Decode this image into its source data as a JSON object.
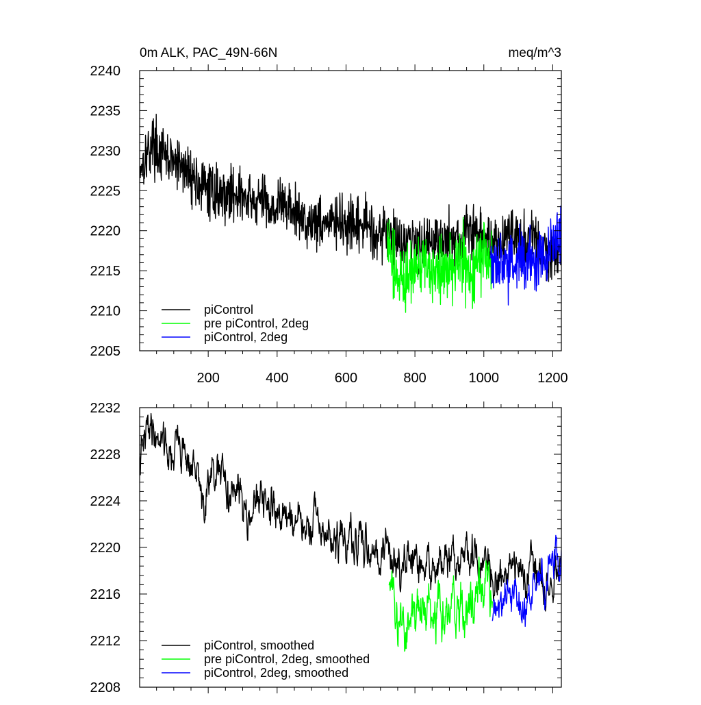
{
  "chart_data": [
    {
      "type": "line",
      "title": "0m ALK, PAC_49N-66N",
      "units_label": "meq/m^3",
      "xlim": [
        1,
        1225
      ],
      "ylim": [
        2205,
        2240
      ],
      "x_tick_values": [
        200,
        400,
        600,
        800,
        1000,
        1200
      ],
      "x_tick_labels": [
        "200",
        "400",
        "600",
        "800",
        "1000",
        "1200"
      ],
      "y_tick_values": [
        2205,
        2210,
        2215,
        2220,
        2225,
        2230,
        2235,
        2240
      ],
      "y_tick_labels": [
        "2205",
        "2210",
        "2215",
        "2220",
        "2225",
        "2230",
        "2235",
        "2240"
      ],
      "grid": false,
      "legend_position": "bottom-left",
      "series": [
        {
          "name": "piControl",
          "color": "#000000",
          "x_start": 1,
          "x_end": 1225,
          "points": [
            [
              1,
              2228
            ],
            [
              20,
              2229.5
            ],
            [
              40,
              2231
            ],
            [
              60,
              2229.5
            ],
            [
              80,
              2229
            ],
            [
              100,
              2228.5
            ],
            [
              120,
              2228
            ],
            [
              140,
              2227.5
            ],
            [
              160,
              2226.5
            ],
            [
              180,
              2225.5
            ],
            [
              200,
              2225
            ],
            [
              220,
              2225
            ],
            [
              240,
              2224.5
            ],
            [
              260,
              2224.5
            ],
            [
              280,
              2225
            ],
            [
              300,
              2224
            ],
            [
              320,
              2223.5
            ],
            [
              340,
              2223.5
            ],
            [
              360,
              2224
            ],
            [
              380,
              2223
            ],
            [
              400,
              2223
            ],
            [
              420,
              2223.5
            ],
            [
              440,
              2222.5
            ],
            [
              460,
              2222
            ],
            [
              480,
              2221.5
            ],
            [
              500,
              2221
            ],
            [
              520,
              2221.5
            ],
            [
              540,
              2221
            ],
            [
              560,
              2221
            ],
            [
              580,
              2221
            ],
            [
              600,
              2220.5
            ],
            [
              620,
              2220
            ],
            [
              640,
              2220.5
            ],
            [
              660,
              2221
            ],
            [
              680,
              2220
            ],
            [
              700,
              2219.5
            ],
            [
              720,
              2220
            ],
            [
              740,
              2219
            ],
            [
              760,
              2218.5
            ],
            [
              780,
              2219
            ],
            [
              800,
              2218.5
            ],
            [
              820,
              2219
            ],
            [
              840,
              2218.5
            ],
            [
              860,
              2219
            ],
            [
              880,
              2218.5
            ],
            [
              900,
              2219
            ],
            [
              920,
              2218.5
            ],
            [
              940,
              2219.5
            ],
            [
              960,
              2220
            ],
            [
              980,
              2219.5
            ],
            [
              1000,
              2219
            ],
            [
              1020,
              2219
            ],
            [
              1040,
              2218.5
            ],
            [
              1060,
              2219
            ],
            [
              1080,
              2220
            ],
            [
              1100,
              2219
            ],
            [
              1120,
              2218.5
            ],
            [
              1140,
              2219
            ],
            [
              1160,
              2218
            ],
            [
              1180,
              2217
            ],
            [
              1200,
              2217.5
            ],
            [
              1225,
              2218
            ]
          ],
          "noise": 2.1
        },
        {
          "name": "pre piControl, 2deg",
          "color": "#00ff00",
          "x_start": 720,
          "x_end": 1025,
          "points": [
            [
              720,
              2219
            ],
            [
              740,
              2215
            ],
            [
              760,
              2214
            ],
            [
              780,
              2214.5
            ],
            [
              800,
              2215
            ],
            [
              820,
              2215
            ],
            [
              840,
              2215
            ],
            [
              860,
              2215.5
            ],
            [
              880,
              2215
            ],
            [
              900,
              2215.5
            ],
            [
              920,
              2216
            ],
            [
              940,
              2216
            ],
            [
              960,
              2215
            ],
            [
              980,
              2216
            ],
            [
              1000,
              2217
            ],
            [
              1025,
              2217.5
            ]
          ],
          "noise": 2.6
        },
        {
          "name": "piControl, 2deg",
          "color": "#0000ff",
          "x_start": 1020,
          "x_end": 1225,
          "points": [
            [
              1020,
              2216
            ],
            [
              1040,
              2215.5
            ],
            [
              1060,
              2216
            ],
            [
              1080,
              2216
            ],
            [
              1100,
              2216
            ],
            [
              1120,
              2216.5
            ],
            [
              1140,
              2216
            ],
            [
              1160,
              2216.5
            ],
            [
              1180,
              2217
            ],
            [
              1200,
              2218
            ],
            [
              1225,
              2219
            ]
          ],
          "noise": 2.4
        }
      ]
    },
    {
      "type": "line",
      "xlim": [
        1,
        1225
      ],
      "ylim": [
        2208,
        2232
      ],
      "x_tick_values": [
        200,
        400,
        600,
        800,
        1000,
        1200
      ],
      "y_tick_values": [
        2208,
        2212,
        2216,
        2220,
        2224,
        2228,
        2232
      ],
      "y_tick_labels": [
        "2208",
        "2212",
        "2216",
        "2220",
        "2224",
        "2228",
        "2232"
      ],
      "grid": false,
      "legend_position": "bottom-left",
      "series": [
        {
          "name": "piControl, smoothed",
          "color": "#000000",
          "x_start": 1,
          "x_end": 1225,
          "points": [
            [
              1,
              2227
            ],
            [
              15,
              2229
            ],
            [
              30,
              2231
            ],
            [
              50,
              2229.5
            ],
            [
              70,
              2230
            ],
            [
              90,
              2227.5
            ],
            [
              110,
              2229
            ],
            [
              130,
              2228.5
            ],
            [
              150,
              2227
            ],
            [
              170,
              2226
            ],
            [
              190,
              2223
            ],
            [
              200,
              2225.5
            ],
            [
              220,
              2226
            ],
            [
              240,
              2226
            ],
            [
              260,
              2225
            ],
            [
              280,
              2224.5
            ],
            [
              300,
              2224
            ],
            [
              320,
              2223.5
            ],
            [
              340,
              2223.5
            ],
            [
              360,
              2224
            ],
            [
              380,
              2223
            ],
            [
              400,
              2223.5
            ],
            [
              420,
              2222.5
            ],
            [
              440,
              2223
            ],
            [
              460,
              2222
            ],
            [
              480,
              2221.5
            ],
            [
              500,
              2221.5
            ],
            [
              520,
              2222
            ],
            [
              540,
              2221
            ],
            [
              560,
              2220.5
            ],
            [
              580,
              2220.5
            ],
            [
              600,
              2220.5
            ],
            [
              620,
              2220
            ],
            [
              640,
              2220
            ],
            [
              660,
              2220.5
            ],
            [
              680,
              2220
            ],
            [
              700,
              2219.5
            ],
            [
              720,
              2220
            ],
            [
              740,
              2219
            ],
            [
              760,
              2218.5
            ],
            [
              780,
              2218.5
            ],
            [
              800,
              2218.5
            ],
            [
              820,
              2218
            ],
            [
              840,
              2218
            ],
            [
              860,
              2219
            ],
            [
              880,
              2218
            ],
            [
              900,
              2219
            ],
            [
              920,
              2218
            ],
            [
              940,
              2219.5
            ],
            [
              960,
              2219.5
            ],
            [
              980,
              2218.5
            ],
            [
              1000,
              2218.5
            ],
            [
              1020,
              2218
            ],
            [
              1040,
              2217.5
            ],
            [
              1060,
              2218
            ],
            [
              1080,
              2219
            ],
            [
              1100,
              2218
            ],
            [
              1120,
              2218
            ],
            [
              1140,
              2219
            ],
            [
              1160,
              2217.5
            ],
            [
              1180,
              2216
            ],
            [
              1200,
              2217
            ],
            [
              1225,
              2218.5
            ]
          ],
          "noise": 1.2
        },
        {
          "name": "pre piControl, 2deg, smoothed",
          "color": "#00ff00",
          "x_start": 725,
          "x_end": 1025,
          "points": [
            [
              725,
              2218
            ],
            [
              740,
              2214
            ],
            [
              760,
              2213
            ],
            [
              780,
              2213.5
            ],
            [
              800,
              2214
            ],
            [
              820,
              2214.5
            ],
            [
              840,
              2214.5
            ],
            [
              860,
              2215
            ],
            [
              880,
              2214
            ],
            [
              900,
              2215
            ],
            [
              920,
              2215.5
            ],
            [
              940,
              2215
            ],
            [
              960,
              2214.5
            ],
            [
              980,
              2216
            ],
            [
              1000,
              2217
            ],
            [
              1025,
              2217
            ]
          ],
          "noise": 1.5
        },
        {
          "name": "piControl, 2deg, smoothed",
          "color": "#0000ff",
          "x_start": 1025,
          "x_end": 1225,
          "points": [
            [
              1025,
              2215
            ],
            [
              1040,
              2215
            ],
            [
              1060,
              2215.5
            ],
            [
              1080,
              2215.5
            ],
            [
              1100,
              2216
            ],
            [
              1120,
              2214.5
            ],
            [
              1140,
              2216
            ],
            [
              1160,
              2216.5
            ],
            [
              1180,
              2217
            ],
            [
              1200,
              2218.5
            ],
            [
              1225,
              2219
            ]
          ],
          "noise": 1.2
        }
      ]
    }
  ]
}
